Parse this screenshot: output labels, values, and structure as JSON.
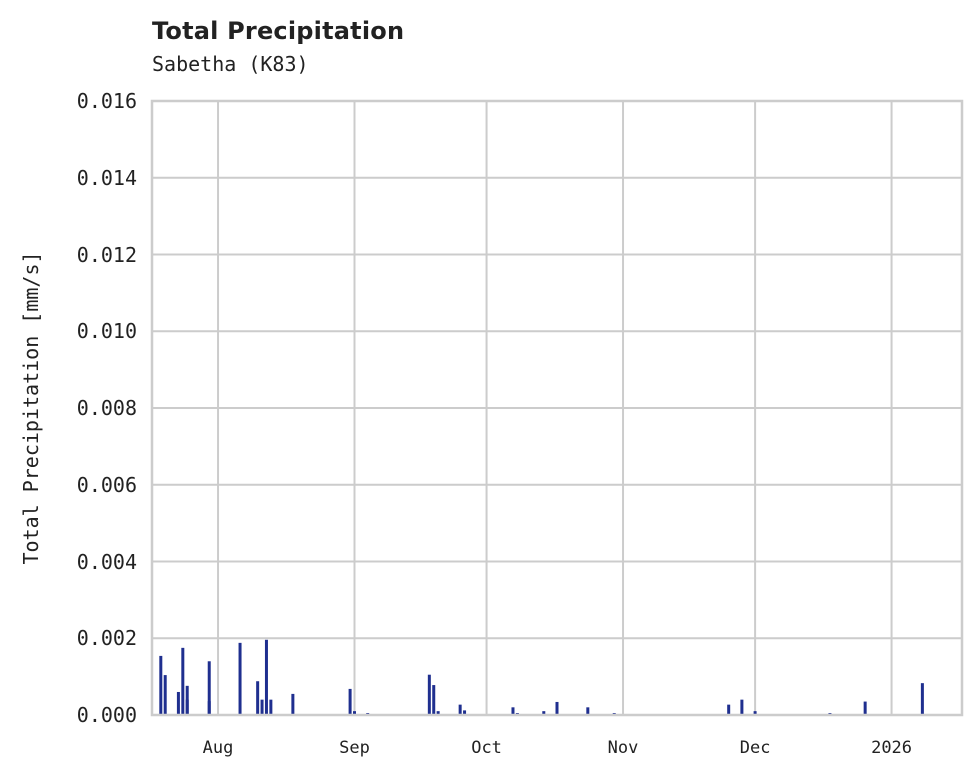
{
  "header": {
    "title": "Total Precipitation",
    "subtitle": "Sabetha (K83)"
  },
  "axes": {
    "ylabel": "Total Precipitation [mm/s]",
    "yticks": [
      "0.000",
      "0.002",
      "0.004",
      "0.006",
      "0.008",
      "0.010",
      "0.012",
      "0.014",
      "0.016"
    ],
    "xticks": [
      "Aug",
      "Sep",
      "Oct",
      "Nov",
      "Dec",
      "2026"
    ]
  },
  "colors": {
    "series": "#1f2f8f",
    "grid": "#cccccc",
    "text": "#222222"
  },
  "chart_data": {
    "type": "bar",
    "title": "Total Precipitation",
    "subtitle": "Sabetha (K83)",
    "xlabel": "",
    "ylabel": "Total Precipitation [mm/s]",
    "ylim": [
      0,
      0.016
    ],
    "xlim": [
      "2025-07-17",
      "2026-01-17"
    ],
    "grid": true,
    "legend": null,
    "x_tick_labels": [
      "Aug",
      "Sep",
      "Oct",
      "Nov",
      "Dec",
      "2026"
    ],
    "y_tick_labels": [
      "0.000",
      "0.002",
      "0.004",
      "0.006",
      "0.008",
      "0.010",
      "0.012",
      "0.014",
      "0.016"
    ],
    "series": [
      {
        "name": "Total Precipitation",
        "x": [
          "2025-07-19",
          "2025-07-20",
          "2025-07-23",
          "2025-07-24",
          "2025-07-25",
          "2025-07-25",
          "2025-07-30",
          "2025-07-30",
          "2025-08-06",
          "2025-08-10",
          "2025-08-11",
          "2025-08-12",
          "2025-08-13",
          "2025-08-18",
          "2025-08-31",
          "2025-09-01",
          "2025-09-04",
          "2025-09-18",
          "2025-09-19",
          "2025-09-20",
          "2025-09-25",
          "2025-09-26",
          "2025-10-07",
          "2025-10-08",
          "2025-10-14",
          "2025-10-17",
          "2025-10-24",
          "2025-10-30",
          "2025-11-25",
          "2025-11-28",
          "2025-12-01",
          "2025-12-18",
          "2025-12-26",
          "2026-01-08"
        ],
        "values": [
          0.00154,
          0.00104,
          0.0006,
          0.00175,
          0.00076,
          0.0004,
          0.0014,
          0.00036,
          0.00188,
          0.00088,
          0.0004,
          0.00196,
          0.0004,
          0.00055,
          0.00068,
          0.0001,
          5e-05,
          0.00105,
          0.00078,
          0.0001,
          0.00027,
          0.00012,
          0.0002,
          5e-05,
          0.0001,
          0.00034,
          0.0002,
          5e-05,
          0.00027,
          0.0004,
          0.0001,
          5e-05,
          0.00035,
          0.00083
        ]
      }
    ]
  }
}
